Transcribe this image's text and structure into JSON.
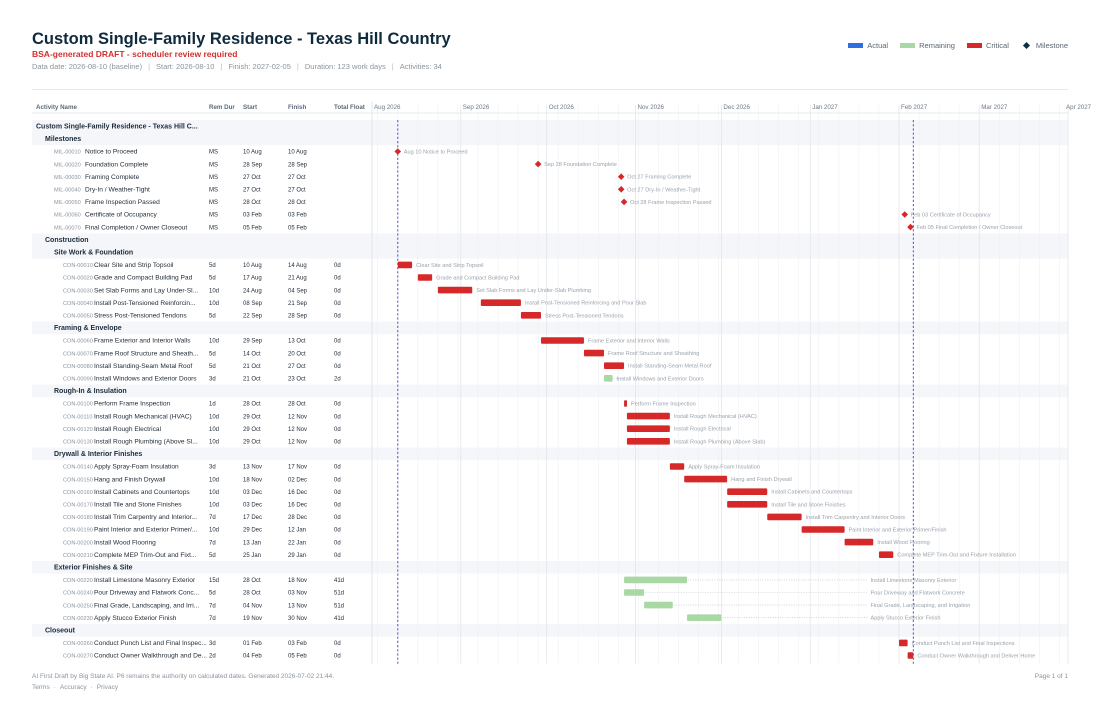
{
  "header": {
    "title": "Custom Single-Family Residence - Texas Hill Country",
    "subtitle": "BSA-generated DRAFT - scheduler review required",
    "data_date": "Data date: 2026-08-10 (baseline)",
    "start": "Start: 2026-08-10",
    "finish": "Finish: 2027-02-05",
    "duration": "Duration: 123 work days",
    "activities": "Activities: 34"
  },
  "legend": {
    "actual": "Actual",
    "remaining": "Remaining",
    "critical": "Critical",
    "milestone": "Milestone"
  },
  "colors": {
    "actual": "#2f6fe0",
    "remaining": "#a9d8a4",
    "critical": "#d62828",
    "milestone": "#123040",
    "today_line": "#4a56c8"
  },
  "footer": {
    "disclaimer": "AI First Draft by Big State AI. P6 remains the authority on calculated dates. Generated 2026-07-02 21:44.",
    "terms": "Terms",
    "accuracy": "Accuracy",
    "privacy": "Privacy",
    "page": "Page 1 of 1"
  },
  "chart_data": {
    "type": "gantt",
    "columns": [
      "Activity Name",
      "Rem Dur",
      "Start",
      "Finish",
      "Total Float"
    ],
    "timeline_start": "2026-08-01",
    "timeline_end": "2027-04-01",
    "timeline_labels": [
      {
        "label": "Aug 2026",
        "date": "2026-08-01"
      },
      {
        "label": "Sep 2026",
        "date": "2026-09-01"
      },
      {
        "label": "Oct 2026",
        "date": "2026-10-01"
      },
      {
        "label": "Nov 2026",
        "date": "2026-11-01"
      },
      {
        "label": "Dec 2026",
        "date": "2026-12-01"
      },
      {
        "label": "Jan 2027",
        "date": "2027-01-01"
      },
      {
        "label": "Feb 2027",
        "date": "2027-02-01"
      },
      {
        "label": "Mar 2027",
        "date": "2027-03-01"
      },
      {
        "label": "Apr 2027",
        "date": "2027-04-01"
      }
    ],
    "data_date": "2026-08-10",
    "finish_date": "2027-02-05",
    "rows": [
      {
        "kind": "project",
        "name": "Custom Single-Family Residence - Texas Hill C..."
      },
      {
        "kind": "wbs1",
        "name": "Milestones"
      },
      {
        "kind": "ms",
        "id": "MIL-00010",
        "name": "Notice to Proceed",
        "rem": "MS",
        "start": "10 Aug",
        "finish": "10 Aug",
        "float": "",
        "s": "2026-08-10",
        "label": "Aug 10  Notice to Proceed"
      },
      {
        "kind": "ms",
        "id": "MIL-00020",
        "name": "Foundation Complete",
        "rem": "MS",
        "start": "28 Sep",
        "finish": "28 Sep",
        "float": "",
        "s": "2026-09-28",
        "label": "Sep 28  Foundation Complete"
      },
      {
        "kind": "ms",
        "id": "MIL-00030",
        "name": "Framing Complete",
        "rem": "MS",
        "start": "27 Oct",
        "finish": "27 Oct",
        "float": "",
        "s": "2026-10-27",
        "label": "Oct 27  Framing Complete"
      },
      {
        "kind": "ms",
        "id": "MIL-00040",
        "name": "Dry-In / Weather-Tight",
        "rem": "MS",
        "start": "27 Oct",
        "finish": "27 Oct",
        "float": "",
        "s": "2026-10-27",
        "label": "Oct 27  Dry-In / Weather-Tight"
      },
      {
        "kind": "ms",
        "id": "MIL-00050",
        "name": "Frame Inspection Passed",
        "rem": "MS",
        "start": "28 Oct",
        "finish": "28 Oct",
        "float": "",
        "s": "2026-10-28",
        "label": "Oct 28  Frame Inspection Passed"
      },
      {
        "kind": "ms",
        "id": "MIL-00060",
        "name": "Certificate of Occupancy",
        "rem": "MS",
        "start": "03 Feb",
        "finish": "03 Feb",
        "float": "",
        "s": "2027-02-03",
        "label": "Feb 03  Certificate of Occupancy"
      },
      {
        "kind": "ms",
        "id": "MIL-00070",
        "name": "Final Completion / Owner Closeout",
        "rem": "MS",
        "start": "05 Feb",
        "finish": "05 Feb",
        "float": "",
        "s": "2027-02-05",
        "label": "Feb 05  Final Completion / Owner Closeout"
      },
      {
        "kind": "wbs1",
        "name": "Construction"
      },
      {
        "kind": "wbs2",
        "name": "Site Work & Foundation"
      },
      {
        "kind": "task",
        "id": "CON-00010",
        "name": "Clear Site and Strip Topsoil",
        "rem": "5d",
        "start": "10 Aug",
        "finish": "14 Aug",
        "float": "0d",
        "s": "2026-08-10",
        "f": "2026-08-14",
        "crit": true,
        "label": "Clear Site and Strip Topsoil"
      },
      {
        "kind": "task",
        "id": "CON-00020",
        "name": "Grade and Compact Building Pad",
        "rem": "5d",
        "start": "17 Aug",
        "finish": "21 Aug",
        "float": "0d",
        "s": "2026-08-17",
        "f": "2026-08-21",
        "crit": true,
        "label": "Grade and Compact Building Pad"
      },
      {
        "kind": "task",
        "id": "CON-00030",
        "name": "Set Slab Forms and Lay Under-Sl...",
        "rem": "10d",
        "start": "24 Aug",
        "finish": "04 Sep",
        "float": "0d",
        "s": "2026-08-24",
        "f": "2026-09-04",
        "crit": true,
        "label": "Set Slab Forms and Lay Under-Slab Plumbing"
      },
      {
        "kind": "task",
        "id": "CON-00040",
        "name": "Install Post-Tensioned Reinforcin...",
        "rem": "10d",
        "start": "08 Sep",
        "finish": "21 Sep",
        "float": "0d",
        "s": "2026-09-08",
        "f": "2026-09-21",
        "crit": true,
        "label": "Install Post-Tensioned Reinforcing and Pour Slab"
      },
      {
        "kind": "task",
        "id": "CON-00050",
        "name": "Stress Post-Tensioned Tendons",
        "rem": "5d",
        "start": "22 Sep",
        "finish": "28 Sep",
        "float": "0d",
        "s": "2026-09-22",
        "f": "2026-09-28",
        "crit": true,
        "label": "Stress Post-Tensioned Tendons"
      },
      {
        "kind": "wbs2",
        "name": "Framing & Envelope"
      },
      {
        "kind": "task",
        "id": "CON-00060",
        "name": "Frame Exterior and Interior Walls",
        "rem": "10d",
        "start": "29 Sep",
        "finish": "13 Oct",
        "float": "0d",
        "s": "2026-09-29",
        "f": "2026-10-13",
        "crit": true,
        "label": "Frame Exterior and Interior Walls"
      },
      {
        "kind": "task",
        "id": "CON-00070",
        "name": "Frame Roof Structure and Sheath...",
        "rem": "5d",
        "start": "14 Oct",
        "finish": "20 Oct",
        "float": "0d",
        "s": "2026-10-14",
        "f": "2026-10-20",
        "crit": true,
        "label": "Frame Roof Structure and Sheathing"
      },
      {
        "kind": "task",
        "id": "CON-00080",
        "name": "Install Standing-Seam Metal Roof",
        "rem": "5d",
        "start": "21 Oct",
        "finish": "27 Oct",
        "float": "0d",
        "s": "2026-10-21",
        "f": "2026-10-27",
        "crit": true,
        "label": "Install Standing-Seam Metal Roof"
      },
      {
        "kind": "task",
        "id": "CON-00090",
        "name": "Install Windows and Exterior Doors",
        "rem": "3d",
        "start": "21 Oct",
        "finish": "23 Oct",
        "float": "2d",
        "s": "2026-10-21",
        "f": "2026-10-23",
        "crit": false,
        "label": "Install Windows and Exterior Doors",
        "float_to": "2026-10-27"
      },
      {
        "kind": "wbs2",
        "name": "Rough-In & Insulation"
      },
      {
        "kind": "task",
        "id": "CON-00100",
        "name": "Perform Frame Inspection",
        "rem": "1d",
        "start": "28 Oct",
        "finish": "28 Oct",
        "float": "0d",
        "s": "2026-10-28",
        "f": "2026-10-28",
        "crit": true,
        "label": "Perform Frame Inspection"
      },
      {
        "kind": "task",
        "id": "CON-00110",
        "name": "Install Rough Mechanical (HVAC)",
        "rem": "10d",
        "start": "29 Oct",
        "finish": "12 Nov",
        "float": "0d",
        "s": "2026-10-29",
        "f": "2026-11-12",
        "crit": true,
        "label": "Install Rough Mechanical (HVAC)"
      },
      {
        "kind": "task",
        "id": "CON-00120",
        "name": "Install Rough Electrical",
        "rem": "10d",
        "start": "29 Oct",
        "finish": "12 Nov",
        "float": "0d",
        "s": "2026-10-29",
        "f": "2026-11-12",
        "crit": true,
        "label": "Install Rough Electrical"
      },
      {
        "kind": "task",
        "id": "CON-00130",
        "name": "Install Rough Plumbing (Above Sl...",
        "rem": "10d",
        "start": "29 Oct",
        "finish": "12 Nov",
        "float": "0d",
        "s": "2026-10-29",
        "f": "2026-11-12",
        "crit": true,
        "label": "Install Rough Plumbing (Above Slab)"
      },
      {
        "kind": "wbs2",
        "name": "Drywall & Interior Finishes"
      },
      {
        "kind": "task",
        "id": "CON-00140",
        "name": "Apply Spray-Foam Insulation",
        "rem": "3d",
        "start": "13 Nov",
        "finish": "17 Nov",
        "float": "0d",
        "s": "2026-11-13",
        "f": "2026-11-17",
        "crit": true,
        "label": "Apply Spray-Foam Insulation"
      },
      {
        "kind": "task",
        "id": "CON-00150",
        "name": "Hang and Finish Drywall",
        "rem": "10d",
        "start": "18 Nov",
        "finish": "02 Dec",
        "float": "0d",
        "s": "2026-11-18",
        "f": "2026-12-02",
        "crit": true,
        "label": "Hang and Finish Drywall"
      },
      {
        "kind": "task",
        "id": "CON-00160",
        "name": "Install Cabinets and Countertops",
        "rem": "10d",
        "start": "03 Dec",
        "finish": "16 Dec",
        "float": "0d",
        "s": "2026-12-03",
        "f": "2026-12-16",
        "crit": true,
        "label": "Install Cabinets and Countertops"
      },
      {
        "kind": "task",
        "id": "CON-00170",
        "name": "Install Tile and Stone Finishes",
        "rem": "10d",
        "start": "03 Dec",
        "finish": "16 Dec",
        "float": "0d",
        "s": "2026-12-03",
        "f": "2026-12-16",
        "crit": true,
        "label": "Install Tile and Stone Finishes"
      },
      {
        "kind": "task",
        "id": "CON-00180",
        "name": "Install Trim Carpentry and Interior...",
        "rem": "7d",
        "start": "17 Dec",
        "finish": "28 Dec",
        "float": "0d",
        "s": "2026-12-17",
        "f": "2026-12-28",
        "crit": true,
        "label": "Install Trim Carpentry and Interior Doors"
      },
      {
        "kind": "task",
        "id": "CON-00190",
        "name": "Paint Interior and Exterior Primer/...",
        "rem": "10d",
        "start": "29 Dec",
        "finish": "12 Jan",
        "float": "0d",
        "s": "2026-12-29",
        "f": "2027-01-12",
        "crit": true,
        "label": "Paint Interior and Exterior Primer/Finish"
      },
      {
        "kind": "task",
        "id": "CON-00200",
        "name": "Install Wood Flooring",
        "rem": "7d",
        "start": "13 Jan",
        "finish": "22 Jan",
        "float": "0d",
        "s": "2027-01-13",
        "f": "2027-01-22",
        "crit": true,
        "label": "Install Wood Flooring"
      },
      {
        "kind": "task",
        "id": "CON-00210",
        "name": "Complete MEP Trim-Out and Fixt...",
        "rem": "5d",
        "start": "25 Jan",
        "finish": "29 Jan",
        "float": "0d",
        "s": "2027-01-25",
        "f": "2027-01-29",
        "crit": true,
        "label": "Complete MEP Trim-Out and Fixture Installation"
      },
      {
        "kind": "wbs2",
        "name": "Exterior Finishes & Site"
      },
      {
        "kind": "task",
        "id": "CON-00220",
        "name": "Install Limestone Masonry Exterior",
        "rem": "15d",
        "start": "28 Oct",
        "finish": "18 Nov",
        "float": "41d",
        "s": "2026-10-28",
        "f": "2026-11-18",
        "crit": false,
        "label": "Install Limestone Masonry Exterior",
        "float_to": "2027-01-20"
      },
      {
        "kind": "task",
        "id": "CON-00240",
        "name": "Pour Driveway and Flatwork Conc...",
        "rem": "5d",
        "start": "28 Oct",
        "finish": "03 Nov",
        "float": "51d",
        "s": "2026-10-28",
        "f": "2026-11-03",
        "crit": false,
        "label": "Pour Driveway and Flatwork Concrete",
        "float_to": "2027-01-20"
      },
      {
        "kind": "task",
        "id": "CON-00250",
        "name": "Final Grade, Landscaping, and Irri...",
        "rem": "7d",
        "start": "04 Nov",
        "finish": "13 Nov",
        "float": "51d",
        "s": "2026-11-04",
        "f": "2026-11-13",
        "crit": false,
        "label": "Final Grade, Landscaping, and Irrigation",
        "float_to": "2027-01-20"
      },
      {
        "kind": "task",
        "id": "CON-00230",
        "name": "Apply Stucco Exterior Finish",
        "rem": "7d",
        "start": "19 Nov",
        "finish": "30 Nov",
        "float": "41d",
        "s": "2026-11-19",
        "f": "2026-11-30",
        "crit": false,
        "label": "Apply Stucco Exterior Finish",
        "float_to": "2027-01-20"
      },
      {
        "kind": "wbs1",
        "name": "Closeout"
      },
      {
        "kind": "task",
        "id": "CON-00260",
        "name": "Conduct Punch List and Final Inspec...",
        "rem": "3d",
        "start": "01 Feb",
        "finish": "03 Feb",
        "float": "0d",
        "s": "2027-02-01",
        "f": "2027-02-03",
        "crit": true,
        "label": "Conduct Punch List and Final Inspections"
      },
      {
        "kind": "task",
        "id": "CON-00270",
        "name": "Conduct Owner Walkthrough and De...",
        "rem": "2d",
        "start": "04 Feb",
        "finish": "05 Feb",
        "float": "0d",
        "s": "2027-02-04",
        "f": "2027-02-05",
        "crit": true,
        "label": "Conduct Owner Walkthrough and Deliver Home"
      }
    ]
  }
}
